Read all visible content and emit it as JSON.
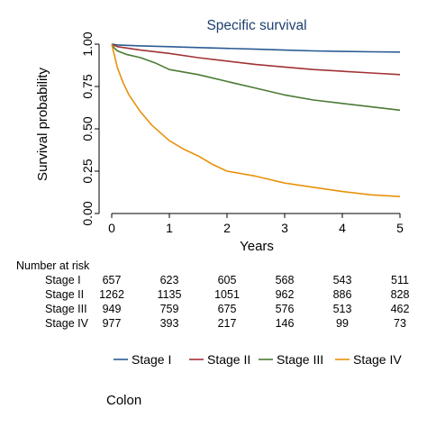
{
  "chart_data": {
    "type": "line",
    "title": "Specific survival",
    "xlabel": "Years",
    "ylabel": "Survival probability",
    "xlim": [
      0,
      5
    ],
    "ylim": [
      0,
      1
    ],
    "x_ticks": [
      "0",
      "1",
      "2",
      "3",
      "4",
      "5"
    ],
    "y_ticks": [
      "0.00",
      "0.25",
      "0.50",
      "0.75",
      "1.00"
    ],
    "grid": false,
    "legend": "bottom",
    "series": [
      {
        "name": "Stage I",
        "color": "#2a5a94",
        "x": [
          0,
          0.1,
          0.5,
          1,
          1.5,
          2,
          2.5,
          3,
          3.5,
          4,
          4.5,
          5
        ],
        "y": [
          1.0,
          0.995,
          0.99,
          0.985,
          0.98,
          0.975,
          0.97,
          0.965,
          0.96,
          0.957,
          0.955,
          0.953
        ]
      },
      {
        "name": "Stage II",
        "color": "#a23234",
        "x": [
          0,
          0.1,
          0.5,
          1,
          1.5,
          2,
          2.5,
          3,
          3.5,
          4,
          4.5,
          5
        ],
        "y": [
          1.0,
          0.985,
          0.965,
          0.945,
          0.92,
          0.9,
          0.88,
          0.865,
          0.85,
          0.84,
          0.83,
          0.82
        ]
      },
      {
        "name": "Stage III",
        "color": "#4b7a34",
        "x": [
          0,
          0.05,
          0.1,
          0.25,
          0.5,
          0.75,
          1,
          1.5,
          2,
          2.5,
          3,
          3.5,
          4,
          4.5,
          5
        ],
        "y": [
          1.0,
          0.975,
          0.96,
          0.94,
          0.92,
          0.89,
          0.85,
          0.82,
          0.78,
          0.74,
          0.7,
          0.67,
          0.65,
          0.63,
          0.61
        ]
      },
      {
        "name": "Stage IV",
        "color": "#e8920a",
        "x": [
          0,
          0.05,
          0.1,
          0.2,
          0.3,
          0.5,
          0.7,
          1,
          1.25,
          1.5,
          1.75,
          2,
          2.5,
          3,
          3.5,
          4,
          4.5,
          5
        ],
        "y": [
          1.0,
          0.93,
          0.86,
          0.77,
          0.7,
          0.6,
          0.52,
          0.43,
          0.38,
          0.34,
          0.29,
          0.25,
          0.22,
          0.18,
          0.155,
          0.13,
          0.11,
          0.1
        ]
      }
    ]
  },
  "risk_table": {
    "title": "Number at risk",
    "rows": [
      {
        "label": "Stage I",
        "values": [
          "657",
          "623",
          "605",
          "568",
          "543",
          "511"
        ]
      },
      {
        "label": "Stage II",
        "values": [
          "1262",
          "1135",
          "1051",
          "962",
          "886",
          "828"
        ]
      },
      {
        "label": "Stage III",
        "values": [
          "949",
          "759",
          "675",
          "576",
          "513",
          "462"
        ]
      },
      {
        "label": "Stage IV",
        "values": [
          "977",
          "393",
          "217",
          "146",
          "99",
          "73"
        ]
      }
    ]
  },
  "caption": "Colon"
}
